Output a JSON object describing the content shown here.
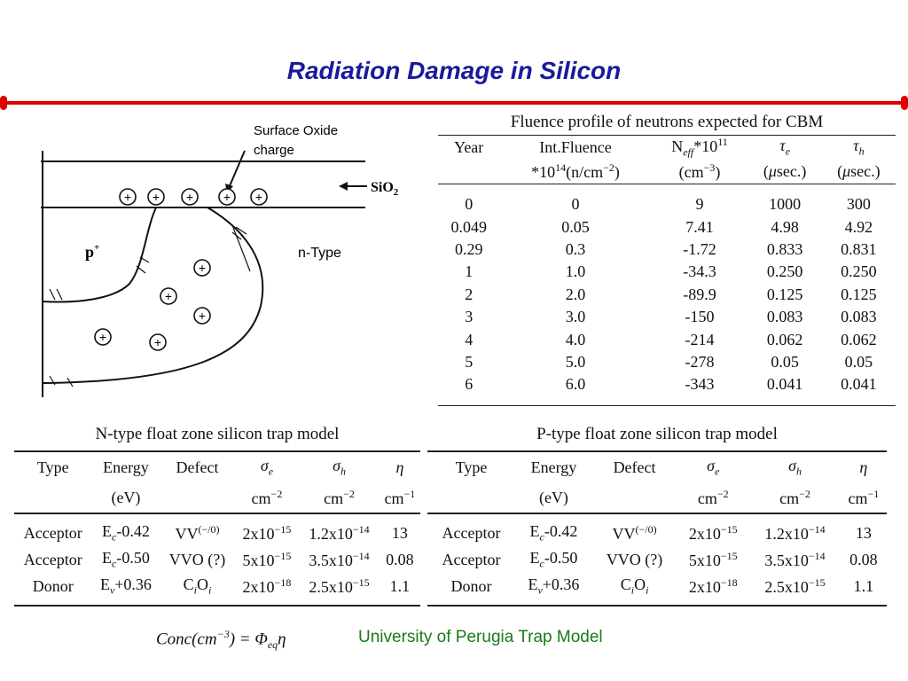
{
  "slide": {
    "title": "Radiation Damage in Silicon",
    "footer": "University of Perugia Trap Model",
    "formula": "Conc(cm−3) = Φeqη"
  },
  "diagram": {
    "label_oxide": "Surface Oxide charge",
    "label_oxide_line1": "Surface Oxide",
    "label_oxide_line2": "charge",
    "label_sio2": "SiO2",
    "label_p": "p+",
    "label_n": "n-Type"
  },
  "fluence": {
    "caption": "Fluence profile of neutrons expected for CBM",
    "headers_row1": [
      "Year",
      "Int.Fluence",
      "Neff*10^11",
      "τe",
      "τh"
    ],
    "headers_row2": [
      "",
      "*10^14(n/cm−2)",
      "(cm−3)",
      "(μsec.)",
      "(μsec.)"
    ],
    "rows": [
      [
        "0",
        "0",
        "9",
        "1000",
        "300"
      ],
      [
        "0.049",
        "0.05",
        "7.41",
        "4.98",
        "4.92"
      ],
      [
        "0.29",
        "0.3",
        "-1.72",
        "0.833",
        "0.831"
      ],
      [
        "1",
        "1.0",
        "-34.3",
        "0.250",
        "0.250"
      ],
      [
        "2",
        "2.0",
        "-89.9",
        "0.125",
        "0.125"
      ],
      [
        "3",
        "3.0",
        "-150",
        "0.083",
        "0.083"
      ],
      [
        "4",
        "4.0",
        "-214",
        "0.062",
        "0.062"
      ],
      [
        "5",
        "5.0",
        "-278",
        "0.05",
        "0.05"
      ],
      [
        "6",
        "6.0",
        "-343",
        "0.041",
        "0.041"
      ]
    ]
  },
  "ntrap": {
    "caption": "N-type float zone silicon trap model",
    "headers_row1": [
      "Type",
      "Energy",
      "Defect",
      "σe",
      "σh",
      "η"
    ],
    "headers_row2": [
      "",
      "(eV)",
      "",
      "cm−2",
      "cm−2",
      "cm−1"
    ],
    "rows": [
      [
        "Acceptor",
        "Ec-0.42",
        "VV(−/0)",
        "2x10−15",
        "1.2x10−14",
        "13"
      ],
      [
        "Acceptor",
        "Ec-0.50",
        "VVO (?)",
        "5x10−15",
        "3.5x10−14",
        "0.08"
      ],
      [
        "Donor",
        "Ev+0.36",
        "CiOi",
        "2x10−18",
        "2.5x10−15",
        "1.1"
      ]
    ]
  },
  "ptrap": {
    "caption": "P-type float zone silicon trap model",
    "headers_row1": [
      "Type",
      "Energy",
      "Defect",
      "σe",
      "σh",
      "η"
    ],
    "headers_row2": [
      "",
      "(eV)",
      "",
      "cm−2",
      "cm−2",
      "cm−1"
    ],
    "rows": [
      [
        "Acceptor",
        "Ec-0.42",
        "VV(−/0)",
        "2x10−15",
        "1.2x10−14",
        "13"
      ],
      [
        "Acceptor",
        "Ec-0.50",
        "VVO (?)",
        "5x10−15",
        "3.5x10−14",
        "0.08"
      ],
      [
        "Donor",
        "Ev+0.36",
        "CiOi",
        "2x10−18",
        "2.5x10−15",
        "1.1"
      ]
    ]
  },
  "colors": {
    "title": "#1a1a9c",
    "rule": "#e00000",
    "footer": "#1a7a1a"
  }
}
